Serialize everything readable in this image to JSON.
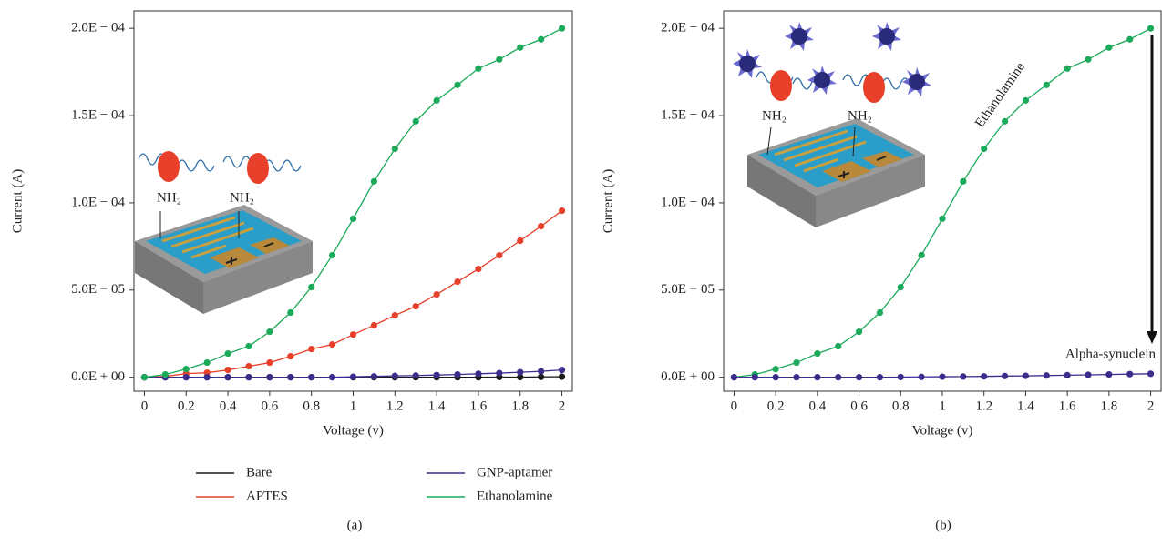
{
  "chart_data": [
    {
      "type": "line",
      "caption": "(a)",
      "x_label": "Voltage (v)",
      "y_label": "Current (A)",
      "x": [
        0,
        0.1,
        0.2,
        0.3,
        0.4,
        0.5,
        0.6,
        0.7,
        0.8,
        0.9,
        1,
        1.1,
        1.2,
        1.3,
        1.4,
        1.5,
        1.6,
        1.7,
        1.8,
        1.9,
        2
      ],
      "xlim": [
        -0.05,
        2.05
      ],
      "xticks": [
        0,
        0.2,
        0.4,
        0.6,
        0.8,
        1,
        1.2,
        1.4,
        1.6,
        1.8,
        2
      ],
      "ylim": [
        -8e-06,
        0.00021
      ],
      "yticks": [
        {
          "value": 0,
          "label": "0.0E + 00"
        },
        {
          "value": 5e-05,
          "label": "5.0E − 05"
        },
        {
          "value": 0.0001,
          "label": "1.0E − 04"
        },
        {
          "value": 0.00015,
          "label": "1.5E − 04"
        },
        {
          "value": 0.0002,
          "label": "2.0E − 04"
        }
      ],
      "legend": true,
      "annotations": [
        "NH₂",
        "NH₂"
      ],
      "series": [
        {
          "name": "Bare",
          "color": "#1a1a1a",
          "values": [
            0,
            0,
            0,
            0,
            0,
            0,
            0,
            0,
            0,
            0,
            0,
            0,
            0,
            0,
            0,
            0,
            0,
            1e-07,
            1e-07,
            2e-07,
            3e-07
          ]
        },
        {
          "name": "APTES",
          "color": "#e8402a",
          "values": [
            0,
            5e-07,
            2.1e-06,
            2.6e-06,
            4.2e-06,
            6.3e-06,
            8.4e-06,
            1.2e-05,
            1.62e-05,
            1.88e-05,
            2.45e-05,
            2.98e-05,
            3.55e-05,
            4.07e-05,
            4.75e-05,
            5.48e-05,
            6.21e-05,
            6.99e-05,
            7.83e-05,
            8.66e-05,
            9.55e-05
          ]
        },
        {
          "name": "GNP-aptamer",
          "color": "#3a2d8c",
          "values": [
            0,
            0,
            0,
            0,
            0,
            0,
            0,
            0,
            0,
            0,
            3e-07,
            5e-07,
            8e-07,
            1e-06,
            1.3e-06,
            1.6e-06,
            2e-06,
            2.4e-06,
            2.9e-06,
            3.4e-06,
            4.2e-06
          ]
        },
        {
          "name": "Ethanolamine",
          "color": "#1aaa5a",
          "values": [
            0,
            1.6e-06,
            4.7e-06,
            8.4e-06,
            1.36e-05,
            1.78e-05,
            2.61e-05,
            3.71e-05,
            5.17e-05,
            7e-05,
            9.09e-05,
            0.0001123,
            0.000131,
            0.0001467,
            0.0001587,
            0.0001676,
            0.000177,
            0.0001822,
            0.000189,
            0.0001937,
            0.0002
          ]
        }
      ]
    },
    {
      "type": "line",
      "caption": "(b)",
      "x_label": "Voltage (v)",
      "y_label": "Current (A)",
      "x": [
        0,
        0.1,
        0.2,
        0.3,
        0.4,
        0.5,
        0.6,
        0.7,
        0.8,
        0.9,
        1,
        1.1,
        1.2,
        1.3,
        1.4,
        1.5,
        1.6,
        1.7,
        1.8,
        1.9,
        2
      ],
      "xlim": [
        -0.05,
        2.05
      ],
      "xticks": [
        0,
        0.2,
        0.4,
        0.6,
        0.8,
        1,
        1.2,
        1.4,
        1.6,
        1.8,
        2
      ],
      "ylim": [
        -8e-06,
        0.00021
      ],
      "yticks": [
        {
          "value": 0,
          "label": "0.0E + 00"
        },
        {
          "value": 5e-05,
          "label": "5.0E − 05"
        },
        {
          "value": 0.0001,
          "label": "1.0E − 04"
        },
        {
          "value": 0.00015,
          "label": "1.5E − 04"
        },
        {
          "value": 0.0002,
          "label": "2.0E − 04"
        }
      ],
      "legend": false,
      "annotations": [
        "NH₂",
        "NH₂"
      ],
      "series": [
        {
          "name": "Ethanolamine",
          "color": "#1aaa5a",
          "values": [
            0,
            1.6e-06,
            4.7e-06,
            8.4e-06,
            1.36e-05,
            1.78e-05,
            2.61e-05,
            3.71e-05,
            5.17e-05,
            7e-05,
            9.09e-05,
            0.0001123,
            0.000131,
            0.0001467,
            0.0001587,
            0.0001676,
            0.000177,
            0.0001822,
            0.000189,
            0.0001937,
            0.0002
          ]
        },
        {
          "name": "Alpha-synuclein",
          "color": "#3a2d8c",
          "values": [
            0,
            0,
            0,
            0,
            0,
            0,
            0,
            0,
            1e-07,
            2e-07,
            3e-07,
            4e-07,
            5e-07,
            7e-07,
            8e-07,
            1e-06,
            1.2e-06,
            1.4e-06,
            1.6e-06,
            1.8e-06,
            2e-06
          ]
        }
      ]
    }
  ]
}
